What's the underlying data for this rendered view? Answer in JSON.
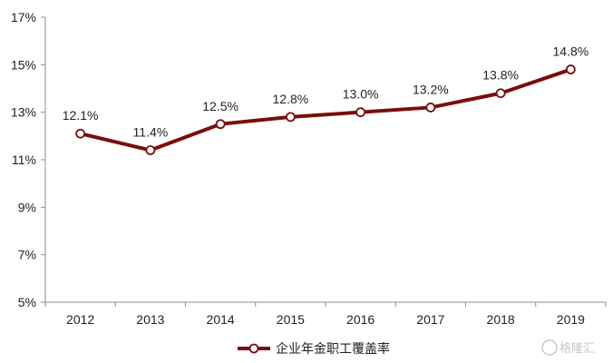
{
  "chart_data": {
    "type": "line",
    "categories": [
      "2012",
      "2013",
      "2014",
      "2015",
      "2016",
      "2017",
      "2018",
      "2019"
    ],
    "series": [
      {
        "name": "企业年金职工覆盖率",
        "values": [
          12.1,
          11.4,
          12.5,
          12.8,
          13.0,
          13.2,
          13.8,
          14.8
        ],
        "labels": [
          "12.1%",
          "11.4%",
          "12.5%",
          "12.8%",
          "13.0%",
          "13.2%",
          "13.8%",
          "14.8%"
        ]
      }
    ],
    "yticks": [
      5,
      7,
      9,
      11,
      13,
      15,
      17
    ],
    "ytick_labels": [
      "5%",
      "7%",
      "9%",
      "11%",
      "13%",
      "15%",
      "17%"
    ],
    "ylim": [
      5,
      17
    ],
    "title": "",
    "xlabel": "",
    "ylabel": "",
    "grid": false,
    "legend_position": "bottom-center",
    "colors": {
      "line": "#7b0d0d",
      "marker_fill": "#ffffff",
      "axis": "#8c8c8c"
    }
  },
  "watermark": {
    "text": "格隆汇"
  }
}
